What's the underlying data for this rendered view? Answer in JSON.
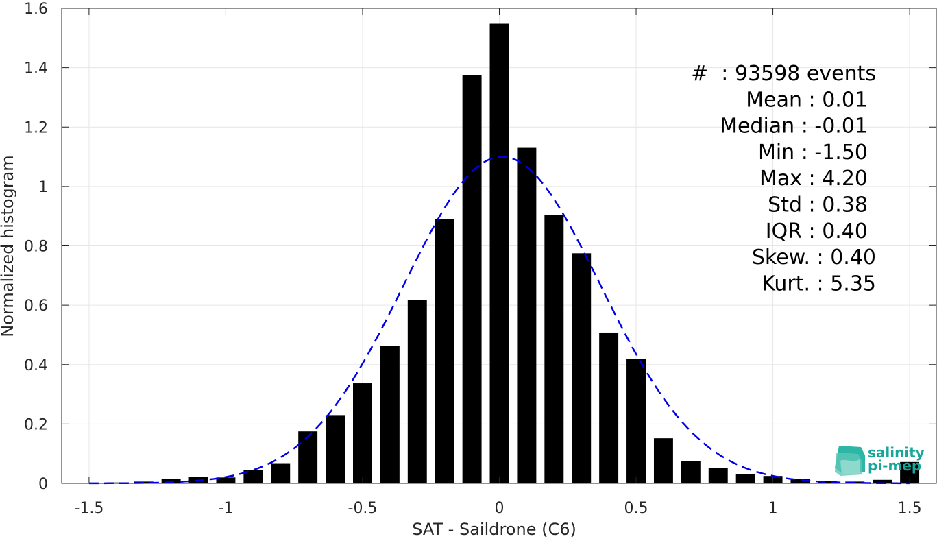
{
  "chart_data": {
    "type": "bar",
    "xlabel": "SAT - Saildrone (C6)",
    "ylabel": "Normalized histogram",
    "xlim": [
      -1.6,
      1.6
    ],
    "ylim": [
      0,
      1.6
    ],
    "x_ticks": [
      "-1.5",
      "-1",
      "-0.5",
      "0",
      "0.5",
      "1",
      "1.5"
    ],
    "y_ticks": [
      "0",
      "0.2",
      "0.4",
      "0.6",
      "0.8",
      "1",
      "1.2",
      "1.4",
      "1.6"
    ],
    "grid": true,
    "x": [
      -1.5,
      -1.4,
      -1.3,
      -1.2,
      -1.1,
      -1.0,
      -0.9,
      -0.8,
      -0.7,
      -0.6,
      -0.5,
      -0.4,
      -0.3,
      -0.2,
      -0.1,
      0.0,
      0.1,
      0.2,
      0.3,
      0.4,
      0.5,
      0.6,
      0.7,
      0.8,
      0.9,
      1.0,
      1.1,
      1.2,
      1.3,
      1.4,
      1.5
    ],
    "values": [
      0.002,
      0.003,
      0.006,
      0.015,
      0.022,
      0.02,
      0.045,
      0.068,
      0.175,
      0.23,
      0.337,
      0.462,
      0.617,
      0.89,
      1.375,
      1.548,
      1.13,
      0.905,
      0.775,
      0.508,
      0.42,
      0.152,
      0.075,
      0.053,
      0.032,
      0.025,
      0.015,
      0.007,
      0.006,
      0.012,
      0.072
    ],
    "fit_curve": {
      "style": "dashed",
      "color": "#0000e6",
      "type": "gaussian",
      "mean": 0.01,
      "std": 0.36,
      "peak": 1.1
    },
    "stats_lines": [
      "#  : 93598 events",
      "Mean : 0.01",
      "Median : -0.01",
      "Min : -1.50",
      "Max : 4.20",
      "Std : 0.38",
      "IQR : 0.40",
      "Skew. : 0.40",
      "Kurt. : 5.35"
    ]
  },
  "logo": {
    "line1": "salinity",
    "line2": "pi-mep",
    "color": "#1aa59a"
  }
}
